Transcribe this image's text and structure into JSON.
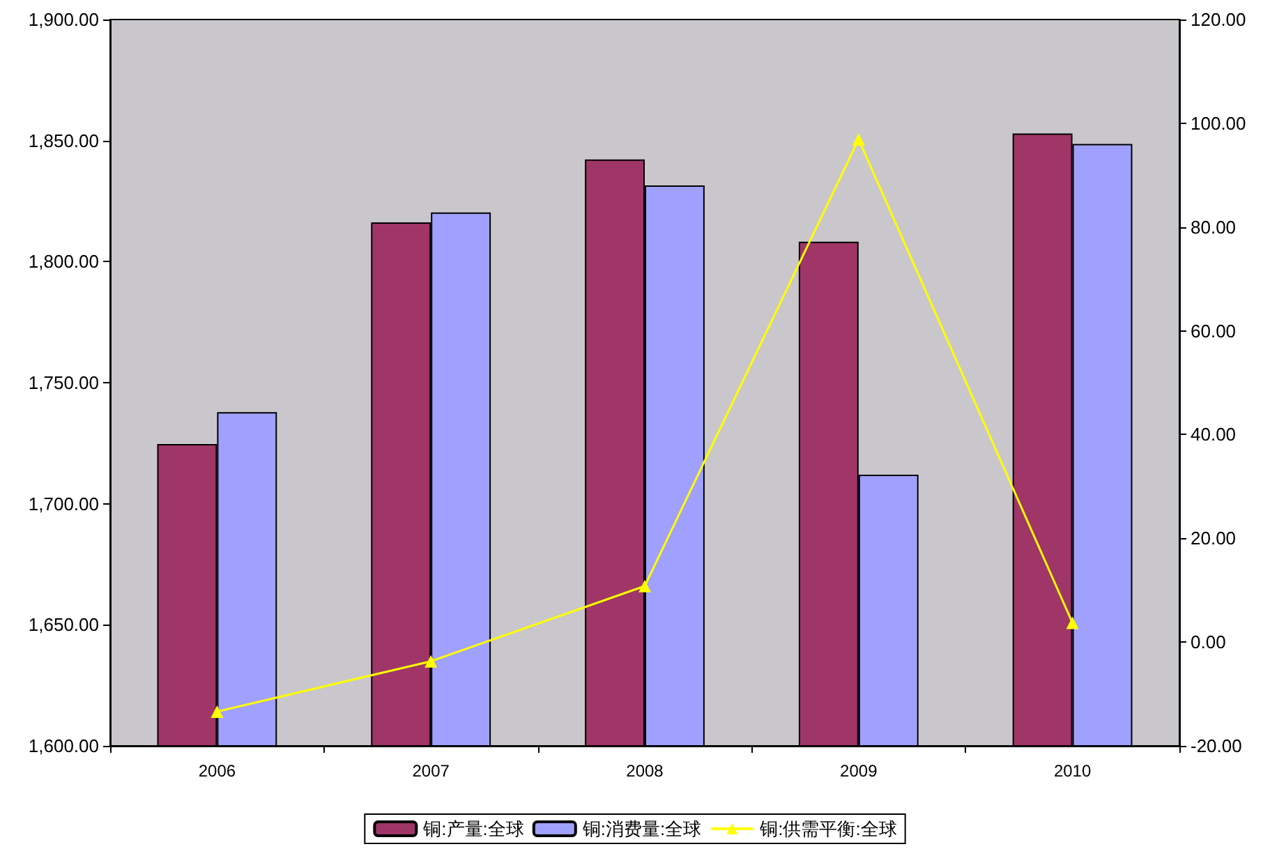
{
  "chart_data": {
    "type": "bar",
    "categories": [
      "2006",
      "2007",
      "2008",
      "2009",
      "2010"
    ],
    "series": [
      {
        "name": "铜:产量:全球",
        "color": "#a03567",
        "values": [
          1724.7,
          1816.2,
          1842.2,
          1808.2,
          1852.9
        ]
      },
      {
        "name": "铜:消费量:全球",
        "color": "#a0a0ff",
        "values": [
          1737.8,
          1820.3,
          1831.5,
          1712.0,
          1848.6
        ]
      },
      {
        "name": "铜:供需平衡:全球",
        "type": "line",
        "axis": "y2",
        "color": "#ffff00",
        "marker": "triangle",
        "values": [
          -13.4,
          -3.7,
          10.8,
          96.9,
          3.7
        ]
      }
    ],
    "ylim": [
      1600,
      1900
    ],
    "yticks": [
      {
        "value": 1600,
        "label": "1,600.00"
      },
      {
        "value": 1650,
        "label": "1,650.00"
      },
      {
        "value": 1700,
        "label": "1,700.00"
      },
      {
        "value": 1750,
        "label": "1,750.00"
      },
      {
        "value": 1800,
        "label": "1,800.00"
      },
      {
        "value": 1850,
        "label": "1,850.00"
      },
      {
        "value": 1900,
        "label": "1,900.00"
      }
    ],
    "y2lim": [
      -20,
      120
    ],
    "y2ticks": [
      {
        "value": -20,
        "label": "-20.00"
      },
      {
        "value": 0,
        "label": "0.00"
      },
      {
        "value": 20,
        "label": "20.00"
      },
      {
        "value": 40,
        "label": "40.00"
      },
      {
        "value": 60,
        "label": "60.00"
      },
      {
        "value": 80,
        "label": "80.00"
      },
      {
        "value": 100,
        "label": "100.00"
      },
      {
        "value": 120,
        "label": "120.00"
      }
    ],
    "grid": false,
    "legend": "bottom"
  }
}
